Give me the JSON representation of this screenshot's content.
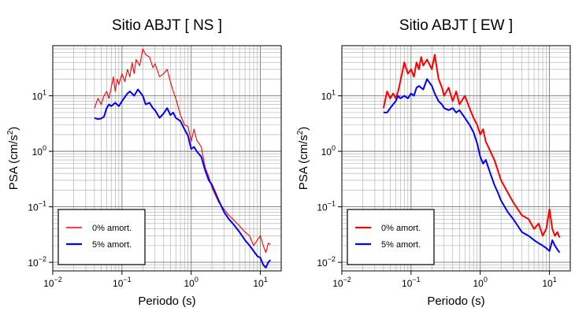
{
  "chart_data": [
    {
      "type": "line",
      "title": "Sitio ABJT [ NS ]",
      "xlabel": "Periodo (s)",
      "ylabel_prefix": "PSA (cm/s",
      "ylabel_sup": "2",
      "ylabel_suffix": ")",
      "xscale": "log",
      "yscale": "log",
      "xlim": [
        0.01,
        20
      ],
      "ylim": [
        0.007,
        80
      ],
      "grid": true,
      "legend_position": "bottom-left",
      "xticks": [
        {
          "base": "10",
          "exp": "−2",
          "value": 0.01
        },
        {
          "base": "10",
          "exp": "−1",
          "value": 0.1
        },
        {
          "base": "10",
          "exp": "0",
          "value": 1
        },
        {
          "base": "10",
          "exp": "1",
          "value": 10
        }
      ],
      "yticks": [
        {
          "base": "10",
          "exp": "−2",
          "value": 0.01
        },
        {
          "base": "10",
          "exp": "−1",
          "value": 0.1
        },
        {
          "base": "10",
          "exp": "0",
          "value": 1
        },
        {
          "base": "10",
          "exp": "1",
          "value": 10
        }
      ],
      "series": [
        {
          "name": "0% amort.",
          "color": "#ff0000",
          "x": [
            0.04,
            0.045,
            0.05,
            0.055,
            0.06,
            0.065,
            0.07,
            0.075,
            0.08,
            0.085,
            0.09,
            0.1,
            0.11,
            0.12,
            0.13,
            0.14,
            0.15,
            0.16,
            0.18,
            0.2,
            0.22,
            0.25,
            0.28,
            0.3,
            0.35,
            0.4,
            0.45,
            0.5,
            0.55,
            0.6,
            0.7,
            0.8,
            0.9,
            1.0,
            1.1,
            1.2,
            1.4,
            1.6,
            1.8,
            2.0,
            2.5,
            3.0,
            3.5,
            4.0,
            5.0,
            6.0,
            7.0,
            8.0,
            9.0,
            10.0,
            11.0,
            12.0,
            13.0,
            14.0
          ],
          "y": [
            6,
            9,
            7,
            10,
            12,
            9,
            14,
            22,
            12,
            20,
            16,
            25,
            18,
            30,
            22,
            40,
            25,
            45,
            35,
            70,
            55,
            50,
            32,
            38,
            22,
            25,
            30,
            18,
            12,
            9,
            4.5,
            3.0,
            2.8,
            1.5,
            2.5,
            1.6,
            1.2,
            0.5,
            0.35,
            0.22,
            0.12,
            0.09,
            0.07,
            0.06,
            0.045,
            0.035,
            0.03,
            0.02,
            0.025,
            0.03,
            0.02,
            0.015,
            0.022,
            0.021
          ]
        },
        {
          "name": "5% amort.",
          "color": "#0000ff",
          "x": [
            0.04,
            0.045,
            0.05,
            0.055,
            0.06,
            0.065,
            0.07,
            0.08,
            0.09,
            0.1,
            0.11,
            0.12,
            0.13,
            0.15,
            0.17,
            0.2,
            0.22,
            0.25,
            0.28,
            0.3,
            0.35,
            0.4,
            0.45,
            0.5,
            0.55,
            0.6,
            0.7,
            0.8,
            0.9,
            1.0,
            1.1,
            1.2,
            1.4,
            1.6,
            1.8,
            2.0,
            2.5,
            3.0,
            3.5,
            4.0,
            5.0,
            6.0,
            7.0,
            8.0,
            9.0,
            10.0,
            11.0,
            12.0,
            13.0,
            14.0
          ],
          "y": [
            4,
            3.8,
            3.9,
            4.2,
            6,
            7,
            6.5,
            7.5,
            6.5,
            8,
            9.5,
            11,
            12,
            10,
            13,
            10,
            7,
            7.5,
            6,
            5.5,
            4,
            4.8,
            6,
            4.5,
            5,
            4,
            3.5,
            2.5,
            1.9,
            1.1,
            1.2,
            1.0,
            0.8,
            0.45,
            0.3,
            0.25,
            0.13,
            0.08,
            0.06,
            0.05,
            0.035,
            0.025,
            0.02,
            0.016,
            0.013,
            0.012,
            0.009,
            0.008,
            0.01,
            0.011
          ]
        }
      ]
    },
    {
      "type": "line",
      "title": "Sitio ABJT [ EW ]",
      "xlabel": "Periodo (s)",
      "ylabel_prefix": "PSA (cm/s",
      "ylabel_sup": "2",
      "ylabel_suffix": ")",
      "xscale": "log",
      "yscale": "log",
      "xlim": [
        0.01,
        20
      ],
      "ylim": [
        0.007,
        80
      ],
      "grid": true,
      "legend_position": "bottom-left",
      "xticks": [
        {
          "base": "10",
          "exp": "−2",
          "value": 0.01
        },
        {
          "base": "10",
          "exp": "−1",
          "value": 0.1
        },
        {
          "base": "10",
          "exp": "0",
          "value": 1
        },
        {
          "base": "10",
          "exp": "1",
          "value": 10
        }
      ],
      "yticks": [
        {
          "base": "10",
          "exp": "−2",
          "value": 0.01
        },
        {
          "base": "10",
          "exp": "−1",
          "value": 0.1
        },
        {
          "base": "10",
          "exp": "0",
          "value": 1
        },
        {
          "base": "10",
          "exp": "1",
          "value": 10
        }
      ],
      "series": [
        {
          "name": "0% amort.",
          "color": "#ff0000",
          "x": [
            0.04,
            0.045,
            0.05,
            0.055,
            0.06,
            0.065,
            0.07,
            0.08,
            0.09,
            0.1,
            0.11,
            0.12,
            0.13,
            0.14,
            0.15,
            0.17,
            0.2,
            0.22,
            0.25,
            0.28,
            0.3,
            0.35,
            0.4,
            0.45,
            0.5,
            0.6,
            0.7,
            0.8,
            0.9,
            1.0,
            1.1,
            1.2,
            1.4,
            1.6,
            1.8,
            2.0,
            2.5,
            3.0,
            3.5,
            4.0,
            5.0,
            6.0,
            7.0,
            8.0,
            9.0,
            10.0,
            11.0,
            12.0,
            13.0,
            14.0
          ],
          "y": [
            6,
            12,
            9,
            11,
            9,
            12,
            18,
            40,
            25,
            30,
            22,
            40,
            30,
            50,
            35,
            45,
            30,
            55,
            20,
            14,
            10,
            14,
            8,
            12,
            7,
            10,
            6,
            4,
            3,
            2.0,
            2.5,
            1.5,
            1.0,
            0.7,
            0.45,
            0.3,
            0.18,
            0.12,
            0.09,
            0.07,
            0.06,
            0.04,
            0.05,
            0.03,
            0.04,
            0.09,
            0.04,
            0.03,
            0.035,
            0.028
          ]
        },
        {
          "name": "5% amort.",
          "color": "#0000ff",
          "x": [
            0.04,
            0.045,
            0.05,
            0.055,
            0.06,
            0.065,
            0.07,
            0.08,
            0.09,
            0.1,
            0.11,
            0.12,
            0.13,
            0.15,
            0.17,
            0.2,
            0.22,
            0.25,
            0.28,
            0.3,
            0.35,
            0.4,
            0.45,
            0.5,
            0.6,
            0.7,
            0.8,
            0.9,
            1.0,
            1.1,
            1.2,
            1.4,
            1.6,
            1.8,
            2.0,
            2.5,
            3.0,
            3.5,
            4.0,
            5.0,
            6.0,
            7.0,
            8.0,
            9.0,
            10.0,
            11.0,
            12.0,
            13.0,
            14.0
          ],
          "y": [
            5,
            5,
            6,
            7,
            8,
            10,
            9,
            10,
            9,
            11,
            10,
            14,
            15,
            13,
            20,
            15,
            11,
            8,
            7,
            6,
            5.5,
            6,
            5,
            5.5,
            4,
            3.0,
            2.2,
            1.4,
            0.8,
            0.6,
            0.7,
            0.4,
            0.25,
            0.18,
            0.13,
            0.08,
            0.06,
            0.045,
            0.035,
            0.03,
            0.025,
            0.022,
            0.02,
            0.018,
            0.016,
            0.025,
            0.02,
            0.017,
            0.015
          ]
        }
      ]
    }
  ]
}
